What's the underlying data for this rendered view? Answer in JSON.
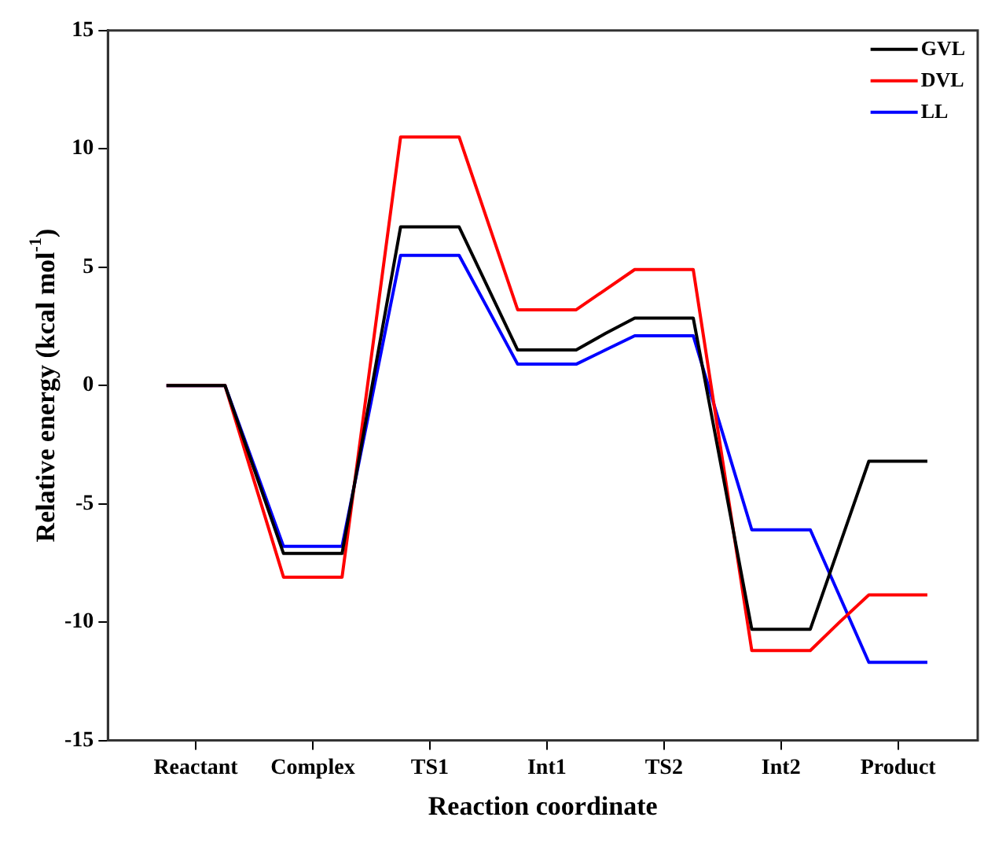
{
  "chart_data": {
    "type": "line",
    "xlabel": "Reaction coordinate",
    "ylabel": "Relative energy (kcal mol$^{-1}$)",
    "categories": [
      null,
      "Reactant",
      null,
      null,
      null,
      "Complex",
      null,
      null,
      null,
      "TS1",
      null,
      null,
      null,
      "Int1",
      null,
      null,
      null,
      "TS2",
      null,
      null,
      null,
      "Int2",
      null,
      null,
      null,
      "Product",
      null
    ],
    "series": [
      {
        "name": "GVL",
        "color": "#000000",
        "values": [
          0,
          0,
          0,
          -3.55,
          -7.1,
          -7.1,
          -7.1,
          -0.2,
          6.7,
          6.7,
          6.7,
          4.1,
          1.5,
          1.5,
          1.5,
          2.2,
          2.85,
          2.85,
          2.85,
          -3.7,
          -10.3,
          -10.3,
          -10.3,
          -6.75,
          -3.2,
          -3.2,
          -3.2
        ]
      },
      {
        "name": "DVL",
        "color": "#ff0000",
        "values": [
          0,
          0,
          0,
          -4.05,
          -8.1,
          -8.1,
          -8.1,
          1.2,
          10.5,
          10.5,
          10.5,
          6.85,
          3.2,
          3.2,
          3.2,
          4.05,
          4.9,
          4.9,
          4.9,
          -3.15,
          -11.2,
          -11.2,
          -11.2,
          -10,
          -8.85,
          -8.85,
          -8.85
        ]
      },
      {
        "name": "LL",
        "color": "#0000ff",
        "values": [
          0,
          0,
          0,
          -3.4,
          -6.8,
          -6.8,
          -6.8,
          -0.65,
          5.5,
          5.5,
          5.5,
          3.2,
          0.9,
          0.9,
          0.9,
          1.5,
          2.1,
          2.1,
          2.1,
          -2,
          -6.1,
          -6.1,
          -6.1,
          -8.9,
          -11.7,
          -11.7,
          -11.7
        ]
      }
    ],
    "ylim": [
      -15,
      15
    ],
    "yticks": [
      -15,
      -10,
      -5,
      0,
      5,
      10,
      15
    ],
    "grid": false,
    "legend": "top right",
    "marker": "none",
    "line_style": "solid"
  }
}
